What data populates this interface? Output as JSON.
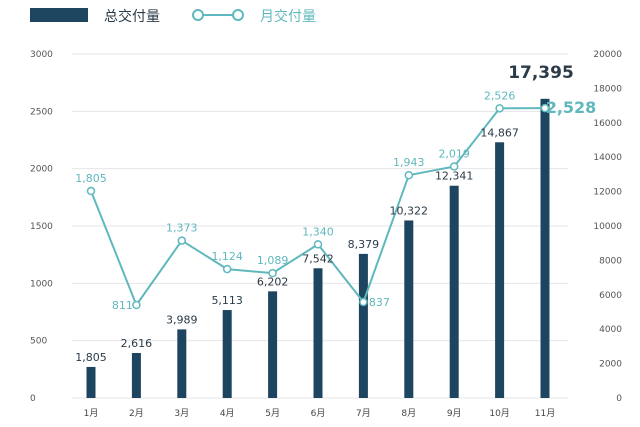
{
  "chart_data": {
    "type": "bar+line",
    "categories": [
      "1月",
      "2月",
      "3月",
      "4月",
      "5月",
      "6月",
      "7月",
      "8月",
      "9月",
      "10月",
      "11月"
    ],
    "series": [
      {
        "name": "总交付量",
        "type": "bar",
        "axis": "right",
        "color": "#1d4560",
        "values": [
          1805,
          2616,
          3989,
          5113,
          6202,
          7542,
          8379,
          10322,
          12341,
          14867,
          17395
        ],
        "labels": [
          "1,805",
          "2,616",
          "3,989",
          "5,113",
          "6,202",
          "7,542",
          "8,379",
          "10,322",
          "12,341",
          "14,867",
          "17,395"
        ]
      },
      {
        "name": "月交付量",
        "type": "line",
        "axis": "left",
        "color": "#5fb8bd",
        "values": [
          1805,
          811,
          1373,
          1124,
          1089,
          1340,
          837,
          1943,
          2019,
          2526,
          2528
        ],
        "labels": [
          "1,805",
          "811",
          "1,373",
          "1,124",
          "1,089",
          "1,340",
          "837",
          "1,943",
          "2,019",
          "2,526",
          "2,528"
        ]
      }
    ],
    "left_axis": {
      "ylim": [
        0,
        3000
      ],
      "ticks": [
        "0",
        "500",
        "1000",
        "1500",
        "2000",
        "2500",
        "3000"
      ]
    },
    "right_axis": {
      "ylim": [
        0,
        20000
      ],
      "ticks": [
        "0",
        "2000",
        "4000",
        "6000",
        "8000",
        "10000",
        "12000",
        "14000",
        "16000",
        "18000",
        "20000"
      ]
    },
    "grid": true,
    "legend": "top-left"
  }
}
